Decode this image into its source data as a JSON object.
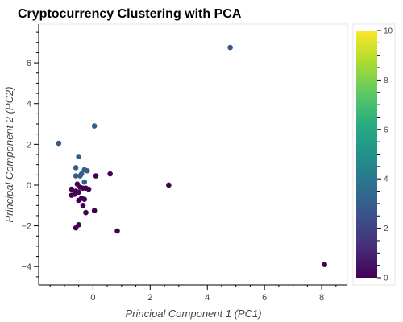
{
  "chart_data": {
    "type": "scatter",
    "title": "Cryptocurrency Clustering with PCA",
    "xlabel": "Principal Component 1 (PC1)",
    "ylabel": "Principal Component 2 (PC2)",
    "xlim": [
      -1.9,
      8.9
    ],
    "ylim": [
      -4.9,
      7.9
    ],
    "xticks": [
      0,
      2,
      4,
      6,
      8
    ],
    "yticks": [
      -4,
      -2,
      0,
      2,
      4,
      6
    ],
    "grid": false,
    "legend": "none",
    "colormap": "viridis",
    "color_range": [
      0,
      10
    ],
    "colorbar_ticks": [
      0,
      2,
      4,
      6,
      8,
      10
    ],
    "colors": {
      "cluster_0": "#440154",
      "cluster_1": "#365c8d"
    },
    "points": [
      {
        "x": -1.2,
        "y": 2.05,
        "c": 3
      },
      {
        "x": 0.05,
        "y": 2.9,
        "c": 3
      },
      {
        "x": 4.8,
        "y": 6.75,
        "c": 3
      },
      {
        "x": -0.5,
        "y": 1.4,
        "c": 3
      },
      {
        "x": -0.6,
        "y": 0.85,
        "c": 3
      },
      {
        "x": -0.3,
        "y": 0.75,
        "c": 3
      },
      {
        "x": -0.2,
        "y": 0.7,
        "c": 3
      },
      {
        "x": -0.4,
        "y": 0.55,
        "c": 3
      },
      {
        "x": -0.6,
        "y": 0.45,
        "c": 3
      },
      {
        "x": -0.45,
        "y": 0.45,
        "c": 3
      },
      {
        "x": -0.3,
        "y": 0.15,
        "c": 3
      },
      {
        "x": 0.1,
        "y": 0.45,
        "c": 0
      },
      {
        "x": 0.6,
        "y": 0.55,
        "c": 0
      },
      {
        "x": 2.65,
        "y": 0.0,
        "c": 0
      },
      {
        "x": -0.55,
        "y": 0.05,
        "c": 0
      },
      {
        "x": -0.45,
        "y": -0.1,
        "c": 0
      },
      {
        "x": -0.35,
        "y": -0.15,
        "c": 0
      },
      {
        "x": -0.25,
        "y": -0.15,
        "c": 0
      },
      {
        "x": -0.15,
        "y": -0.2,
        "c": 0
      },
      {
        "x": -0.75,
        "y": -0.2,
        "c": 0
      },
      {
        "x": -0.6,
        "y": -0.3,
        "c": 0
      },
      {
        "x": -0.5,
        "y": -0.35,
        "c": 0
      },
      {
        "x": -0.65,
        "y": -0.45,
        "c": 0
      },
      {
        "x": -0.75,
        "y": -0.5,
        "c": 0
      },
      {
        "x": -0.4,
        "y": -0.65,
        "c": 0
      },
      {
        "x": -0.3,
        "y": -0.7,
        "c": 0
      },
      {
        "x": -0.5,
        "y": -0.75,
        "c": 0
      },
      {
        "x": -0.35,
        "y": -1.0,
        "c": 0
      },
      {
        "x": 0.05,
        "y": -1.25,
        "c": 0
      },
      {
        "x": -0.25,
        "y": -1.35,
        "c": 0
      },
      {
        "x": -0.5,
        "y": -1.95,
        "c": 0
      },
      {
        "x": -0.6,
        "y": -2.1,
        "c": 0
      },
      {
        "x": 0.85,
        "y": -2.25,
        "c": 0
      },
      {
        "x": 8.1,
        "y": -3.9,
        "c": 0
      }
    ]
  }
}
